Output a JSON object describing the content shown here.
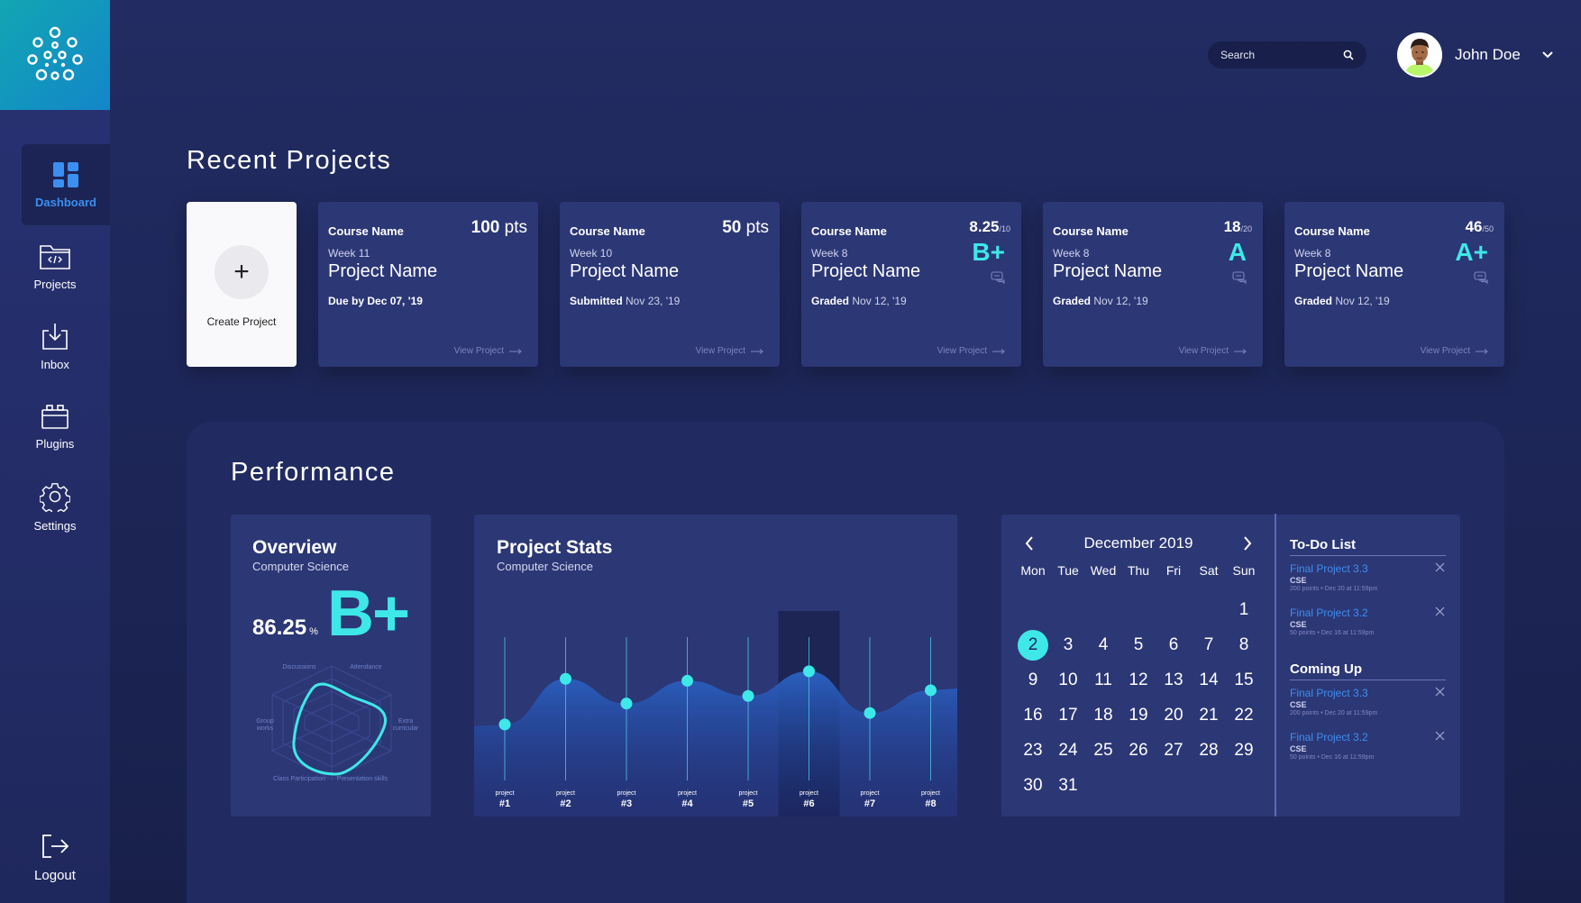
{
  "user": {
    "name": "John Doe"
  },
  "search": {
    "placeholder": "Search"
  },
  "sidebar": {
    "items": [
      {
        "label": "Dashboard",
        "icon": "dashboard-icon",
        "active": true
      },
      {
        "label": "Projects",
        "icon": "code-folder-icon"
      },
      {
        "label": "Inbox",
        "icon": "inbox-download-icon"
      },
      {
        "label": "Plugins",
        "icon": "plugins-icon"
      },
      {
        "label": "Settings",
        "icon": "gear-icon"
      }
    ],
    "logout": {
      "label": "Logout",
      "icon": "logout-icon"
    }
  },
  "recent": {
    "title": "Recent Projects",
    "create_label": "Create Project",
    "view_label": "View Project",
    "cards": [
      {
        "course": "Course Name",
        "pts": "100",
        "pts_unit": "pts",
        "week": "Week 11",
        "name": "Project Name",
        "status_label": "Due by",
        "status_date": "Dec 07, '19"
      },
      {
        "course": "Course Name",
        "pts": "50",
        "pts_unit": "pts",
        "week": "Week 10",
        "name": "Project Name",
        "status_label": "Submitted",
        "status_date": "Nov 23, '19"
      },
      {
        "course": "Course Name",
        "score": "8.25",
        "score_den": "/10",
        "grade": "B+",
        "week": "Week 8",
        "name": "Project Name",
        "status_label": "Graded",
        "status_date": "Nov 12, '19"
      },
      {
        "course": "Course Name",
        "score": "18",
        "score_den": "/20",
        "grade": "A",
        "week": "Week 8",
        "name": "Project Name",
        "status_label": "Graded",
        "status_date": "Nov 12, '19"
      },
      {
        "course": "Course Name",
        "score": "46",
        "score_den": "/50",
        "grade": "A+",
        "week": "Week 8",
        "name": "Project Name",
        "status_label": "Graded",
        "status_date": "Nov 12, '19"
      }
    ]
  },
  "performance": {
    "title": "Performance",
    "overview": {
      "title": "Overview",
      "subtitle": "Computer Science",
      "score": "86.25",
      "score_unit": "%",
      "grade": "B+",
      "radar_labels": [
        "Discussions",
        "Attendance",
        "Extra curricular",
        "Presentation skills",
        "Class Participation",
        "Group works"
      ]
    },
    "stats": {
      "title": "Project Stats",
      "subtitle": "Computer Science"
    },
    "calendar": {
      "month": "December 2019",
      "weekdays": [
        "Mon",
        "Tue",
        "Wed",
        "Thu",
        "Fri",
        "Sat",
        "Sun"
      ],
      "first_weekday_index": 6,
      "days_in_month": 31,
      "selected_day": 2
    },
    "todo": {
      "title": "To-Do List",
      "items": [
        {
          "title": "Final Project 3.3",
          "course": "CSE",
          "meta": "200 points • Dec 20 at 11:59pm"
        },
        {
          "title": "Final Project 3.2",
          "course": "CSE",
          "meta": "50 points • Dec 16 at 11:59pm"
        }
      ]
    },
    "coming_up": {
      "title": "Coming Up",
      "items": [
        {
          "title": "Final Project 3.3",
          "course": "CSE",
          "meta": "200 points • Dec 20 at 11:59pm"
        },
        {
          "title": "Final Project 3.2",
          "course": "CSE",
          "meta": "50 points • Dec 16 at 11:59pm"
        }
      ]
    }
  },
  "chart_data": {
    "type": "area",
    "categories": [
      "project #1",
      "project #2",
      "project #3",
      "project #4",
      "project #5",
      "project #6",
      "project #7",
      "project #8"
    ],
    "tick_labels_top": [
      "project",
      "project",
      "project",
      "project",
      "project",
      "project",
      "project",
      "project"
    ],
    "tick_labels_bottom": [
      "#1",
      "#2",
      "#3",
      "#4",
      "#5",
      "#6",
      "#7",
      "#8"
    ],
    "values": [
      58,
      82,
      69,
      81,
      73,
      86,
      64,
      76
    ],
    "highlighted_index": 5,
    "ylim": [
      0,
      100
    ],
    "grid": false,
    "colors": {
      "marker": "#3ee8e8",
      "area_top": "#2b63c5",
      "area_bottom": "#1a2a74",
      "highlight": "#1c2553"
    }
  }
}
